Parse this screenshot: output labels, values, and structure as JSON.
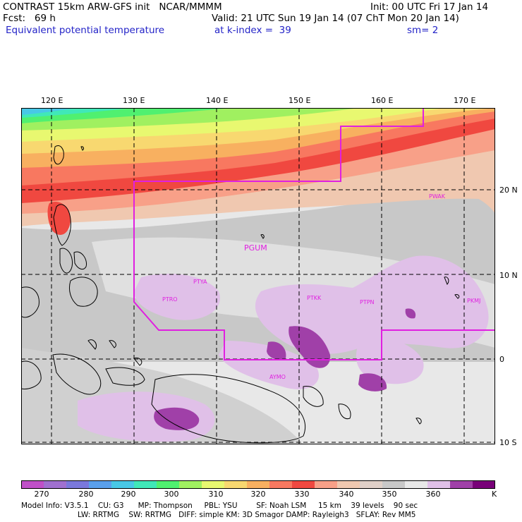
{
  "header": {
    "model_line": "CONTRAST 15km ARW-GFS init   NCAR/MMMM",
    "init_line": "Init: 00 UTC Fri 17 Jan 14",
    "fcst_label": "Fcst:   69 h",
    "valid_line": "Valid: 21 UTC Sun 19 Jan 14 (07 ChT Mon 20 Jan 14)",
    "field_name": "Equivalent potential temperature",
    "level_line": "at k-index =  39",
    "smoothing": "sm= 2"
  },
  "map": {
    "lon_labels": [
      "120 E",
      "130 E",
      "140 E",
      "150 E",
      "160 E",
      "170 E"
    ],
    "lat_labels": [
      "20 N",
      "10 N",
      "0",
      "10 S"
    ],
    "stations": [
      "PGUM",
      "PTYA",
      "PTRO",
      "PTKK",
      "PTPN",
      "PKMJ",
      "PWAK",
      "AYMO"
    ],
    "colors": {
      "boundary": "#e020e0",
      "grid": "#000000",
      "coast": "#000000"
    }
  },
  "colorbar": {
    "labels": [
      "270",
      "280",
      "290",
      "300",
      "310",
      "320",
      "330",
      "340",
      "350",
      "360"
    ],
    "unit": "K",
    "colors": [
      "#c050c8",
      "#a070d0",
      "#7a78dc",
      "#5aa0ec",
      "#48c8e6",
      "#40e8b8",
      "#50f070",
      "#a0f060",
      "#e8f870",
      "#f8d870",
      "#f8b060",
      "#f87860",
      "#f04840",
      "#f8a088",
      "#f0c8b0",
      "#e0d0c8",
      "#c8c8c8",
      "#e8e8e8",
      "#e0c0e8",
      "#a040a8",
      "#780078"
    ]
  },
  "model_info": {
    "line1": "Model Info: V3.5.1    CU: G3      MP: Thompson     PBL: YSU        SF: Noah LSM     15 km    39 levels    90 sec",
    "line2": "LW: RRTMG    SW: RRTMG   DIFF: simple KM: 3D Smagor DAMP: Rayleigh3   SFLAY: Rev MM5"
  }
}
